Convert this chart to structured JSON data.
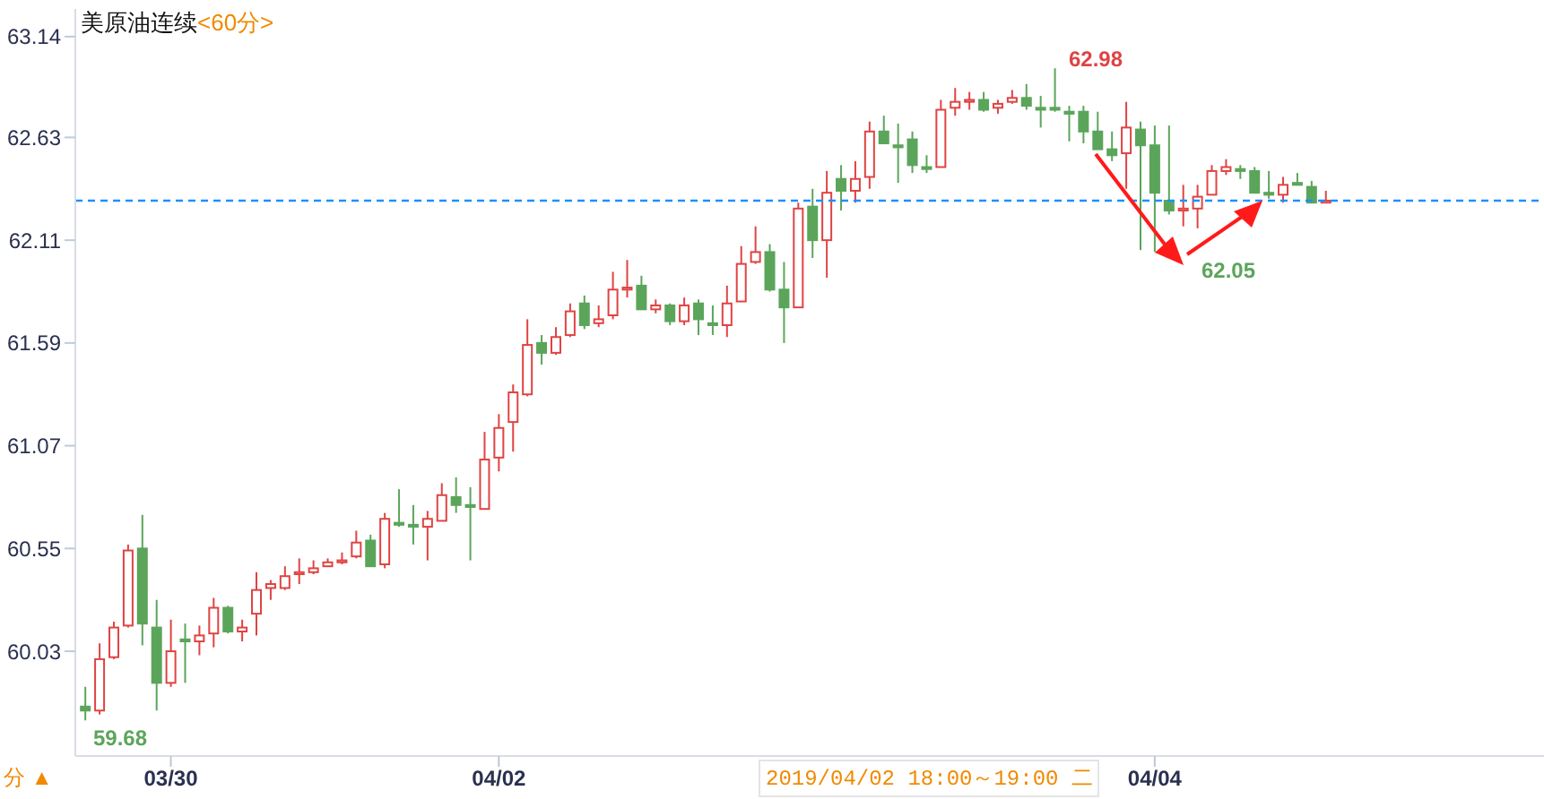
{
  "chart_data": {
    "type": "candlestick",
    "title": "美原油连续",
    "subtitle": "<60分>",
    "categories": [
      null,
      null,
      null,
      null,
      null,
      null,
      "03/30",
      null,
      null,
      null,
      null,
      null,
      null,
      null,
      null,
      null,
      null,
      null,
      null,
      null,
      null,
      null,
      null,
      null,
      null,
      null,
      null,
      null,
      null,
      "04/02",
      null,
      null,
      null,
      null,
      null,
      null,
      null,
      null,
      null,
      null,
      null,
      null,
      null,
      null,
      null,
      null,
      null,
      null,
      null,
      null,
      null,
      null,
      null,
      null,
      null,
      null,
      null,
      null,
      null,
      null,
      null,
      null,
      null,
      null,
      null,
      null,
      null,
      null,
      null,
      null,
      null,
      null,
      null,
      null,
      null,
      "04/04",
      null,
      null,
      null,
      null,
      null,
      null,
      null,
      null,
      null,
      null,
      null,
      null
    ],
    "ohlc": [
      [
        59.75,
        59.85,
        59.68,
        59.73
      ],
      [
        59.73,
        60.07,
        59.71,
        59.99
      ],
      [
        60.0,
        60.18,
        59.99,
        60.15
      ],
      [
        60.16,
        60.57,
        60.15,
        60.54
      ],
      [
        60.55,
        60.72,
        60.06,
        60.17
      ],
      [
        60.15,
        60.29,
        59.73,
        59.87
      ],
      [
        59.87,
        60.19,
        59.85,
        60.03
      ],
      [
        60.09,
        60.17,
        59.87,
        60.08
      ],
      [
        60.08,
        60.16,
        60.01,
        60.11
      ],
      [
        60.12,
        60.3,
        60.05,
        60.25
      ],
      [
        60.25,
        60.26,
        60.12,
        60.13
      ],
      [
        60.13,
        60.19,
        60.08,
        60.15
      ],
      [
        60.22,
        60.43,
        60.11,
        60.34
      ],
      [
        60.35,
        60.39,
        60.29,
        60.37
      ],
      [
        60.35,
        60.46,
        60.34,
        60.41
      ],
      [
        60.42,
        60.5,
        60.37,
        60.43
      ],
      [
        60.43,
        60.49,
        60.42,
        60.45
      ],
      [
        60.46,
        60.5,
        60.46,
        60.48
      ],
      [
        60.48,
        60.53,
        60.47,
        60.49
      ],
      [
        60.51,
        60.64,
        60.5,
        60.58
      ],
      [
        60.59,
        60.62,
        60.46,
        60.46
      ],
      [
        60.47,
        60.73,
        60.45,
        60.7
      ],
      [
        60.68,
        60.85,
        60.66,
        60.67
      ],
      [
        60.67,
        60.77,
        60.57,
        60.66
      ],
      [
        60.66,
        60.74,
        60.49,
        60.7
      ],
      [
        60.69,
        60.88,
        60.69,
        60.82
      ],
      [
        60.81,
        60.91,
        60.73,
        60.77
      ],
      [
        60.77,
        60.86,
        60.49,
        60.76
      ],
      [
        60.75,
        61.14,
        60.75,
        61.0
      ],
      [
        61.01,
        61.23,
        60.94,
        61.16
      ],
      [
        61.19,
        61.38,
        61.04,
        61.34
      ],
      [
        61.33,
        61.71,
        61.32,
        61.58
      ],
      [
        61.59,
        61.63,
        61.48,
        61.54
      ],
      [
        61.54,
        61.67,
        61.53,
        61.62
      ],
      [
        61.63,
        61.79,
        61.62,
        61.75
      ],
      [
        61.79,
        61.83,
        61.66,
        61.68
      ],
      [
        61.69,
        61.78,
        61.67,
        61.71
      ],
      [
        61.73,
        61.95,
        61.71,
        61.86
      ],
      [
        61.86,
        62.01,
        61.82,
        61.87
      ],
      [
        61.88,
        61.93,
        61.76,
        61.76
      ],
      [
        61.76,
        61.81,
        61.74,
        61.78
      ],
      [
        61.78,
        61.79,
        61.68,
        61.7
      ],
      [
        61.7,
        61.82,
        61.68,
        61.78
      ],
      [
        61.79,
        61.81,
        61.63,
        61.71
      ],
      [
        61.69,
        61.78,
        61.63,
        61.68
      ],
      [
        61.68,
        61.88,
        61.62,
        61.79
      ],
      [
        61.8,
        62.08,
        61.8,
        61.99
      ],
      [
        62.0,
        62.18,
        61.99,
        62.05
      ],
      [
        62.05,
        62.09,
        61.85,
        61.86
      ],
      [
        61.86,
        62.0,
        61.59,
        61.77
      ],
      [
        61.77,
        62.3,
        61.77,
        62.27
      ],
      [
        62.28,
        62.37,
        62.02,
        62.11
      ],
      [
        62.11,
        62.46,
        61.92,
        62.35
      ],
      [
        62.42,
        62.49,
        62.26,
        62.36
      ],
      [
        62.36,
        62.51,
        62.3,
        62.42
      ],
      [
        62.43,
        62.71,
        62.37,
        62.66
      ],
      [
        62.66,
        62.74,
        62.6,
        62.6
      ],
      [
        62.59,
        62.7,
        62.4,
        62.58
      ],
      [
        62.62,
        62.66,
        62.45,
        62.49
      ],
      [
        62.48,
        62.54,
        62.45,
        62.47
      ],
      [
        62.48,
        62.82,
        62.48,
        62.77
      ],
      [
        62.78,
        62.88,
        62.74,
        62.81
      ],
      [
        62.81,
        62.86,
        62.77,
        62.82
      ],
      [
        62.82,
        62.86,
        62.76,
        62.77
      ],
      [
        62.78,
        62.82,
        62.75,
        62.8
      ],
      [
        62.81,
        62.87,
        62.8,
        62.83
      ],
      [
        62.83,
        62.9,
        62.77,
        62.79
      ],
      [
        62.78,
        62.84,
        62.68,
        62.77
      ],
      [
        62.78,
        62.98,
        62.76,
        62.77
      ],
      [
        62.76,
        62.79,
        62.61,
        62.75
      ],
      [
        62.76,
        62.79,
        62.6,
        62.66
      ],
      [
        62.66,
        62.76,
        62.57,
        62.57
      ],
      [
        62.57,
        62.66,
        62.51,
        62.54
      ],
      [
        62.55,
        62.81,
        62.37,
        62.68
      ],
      [
        62.67,
        62.71,
        62.06,
        62.59
      ],
      [
        62.59,
        62.69,
        62.05,
        62.35
      ],
      [
        62.31,
        62.69,
        62.24,
        62.26
      ],
      [
        62.26,
        62.39,
        62.18,
        62.27
      ],
      [
        62.27,
        62.39,
        62.17,
        62.33
      ],
      [
        62.34,
        62.49,
        62.34,
        62.46
      ],
      [
        62.46,
        62.52,
        62.44,
        62.48
      ],
      [
        62.47,
        62.49,
        62.42,
        62.46
      ],
      [
        62.46,
        62.48,
        62.35,
        62.35
      ],
      [
        62.35,
        62.46,
        62.32,
        62.34
      ],
      [
        62.34,
        62.43,
        62.3,
        62.39
      ],
      [
        62.4,
        62.45,
        62.39,
        62.39
      ],
      [
        62.38,
        62.41,
        62.3,
        62.3
      ],
      [
        62.3,
        62.36,
        62.3,
        62.31
      ]
    ],
    "colors": [
      "#5ba55b",
      "#e04343",
      "#e04343",
      "#e04343",
      "#5ba55b",
      "#5ba55b",
      "#e04343",
      "#5ba55b",
      "#e04343",
      "#e04343",
      "#5ba55b",
      "#e04343",
      "#e04343",
      "#e04343",
      "#e04343",
      "#e04343",
      "#e04343",
      "#e04343",
      "#e04343",
      "#e04343",
      "#5ba55b",
      "#e04343",
      "#5ba55b",
      "#5ba55b",
      "#e04343",
      "#e04343",
      "#5ba55b",
      "#5ba55b",
      "#e04343",
      "#e04343",
      "#e04343",
      "#e04343",
      "#5ba55b",
      "#e04343",
      "#e04343",
      "#5ba55b",
      "#e04343",
      "#e04343",
      "#e04343",
      "#5ba55b",
      "#e04343",
      "#5ba55b",
      "#e04343",
      "#5ba55b",
      "#5ba55b",
      "#e04343",
      "#e04343",
      "#e04343",
      "#5ba55b",
      "#5ba55b",
      "#e04343",
      "#5ba55b",
      "#e04343",
      "#5ba55b",
      "#e04343",
      "#e04343",
      "#5ba55b",
      "#5ba55b",
      "#5ba55b",
      "#5ba55b",
      "#e04343",
      "#e04343",
      "#e04343",
      "#5ba55b",
      "#e04343",
      "#e04343",
      "#5ba55b",
      "#5ba55b",
      "#5ba55b",
      "#5ba55b",
      "#5ba55b",
      "#5ba55b",
      "#5ba55b",
      "#e04343",
      "#5ba55b",
      "#5ba55b",
      "#5ba55b",
      "#e04343",
      "#e04343",
      "#e04343",
      "#e04343",
      "#5ba55b",
      "#5ba55b",
      "#5ba55b",
      "#e04343",
      "#5ba55b",
      "#5ba55b",
      "#e04343"
    ],
    "ylim": [
      59.5,
      63.28
    ],
    "yticks": [
      60.03,
      60.55,
      61.07,
      61.59,
      62.11,
      62.63,
      63.14
    ],
    "ref_lines": [
      {
        "axis": "y",
        "value": 62.31,
        "color": "#1e8fff",
        "line_style": "dashed"
      }
    ],
    "annotations": [
      "59.68",
      "62.98",
      "62.05",
      "分 ▲",
      "2019/04/02 18:00～19:00 二"
    ]
  }
}
